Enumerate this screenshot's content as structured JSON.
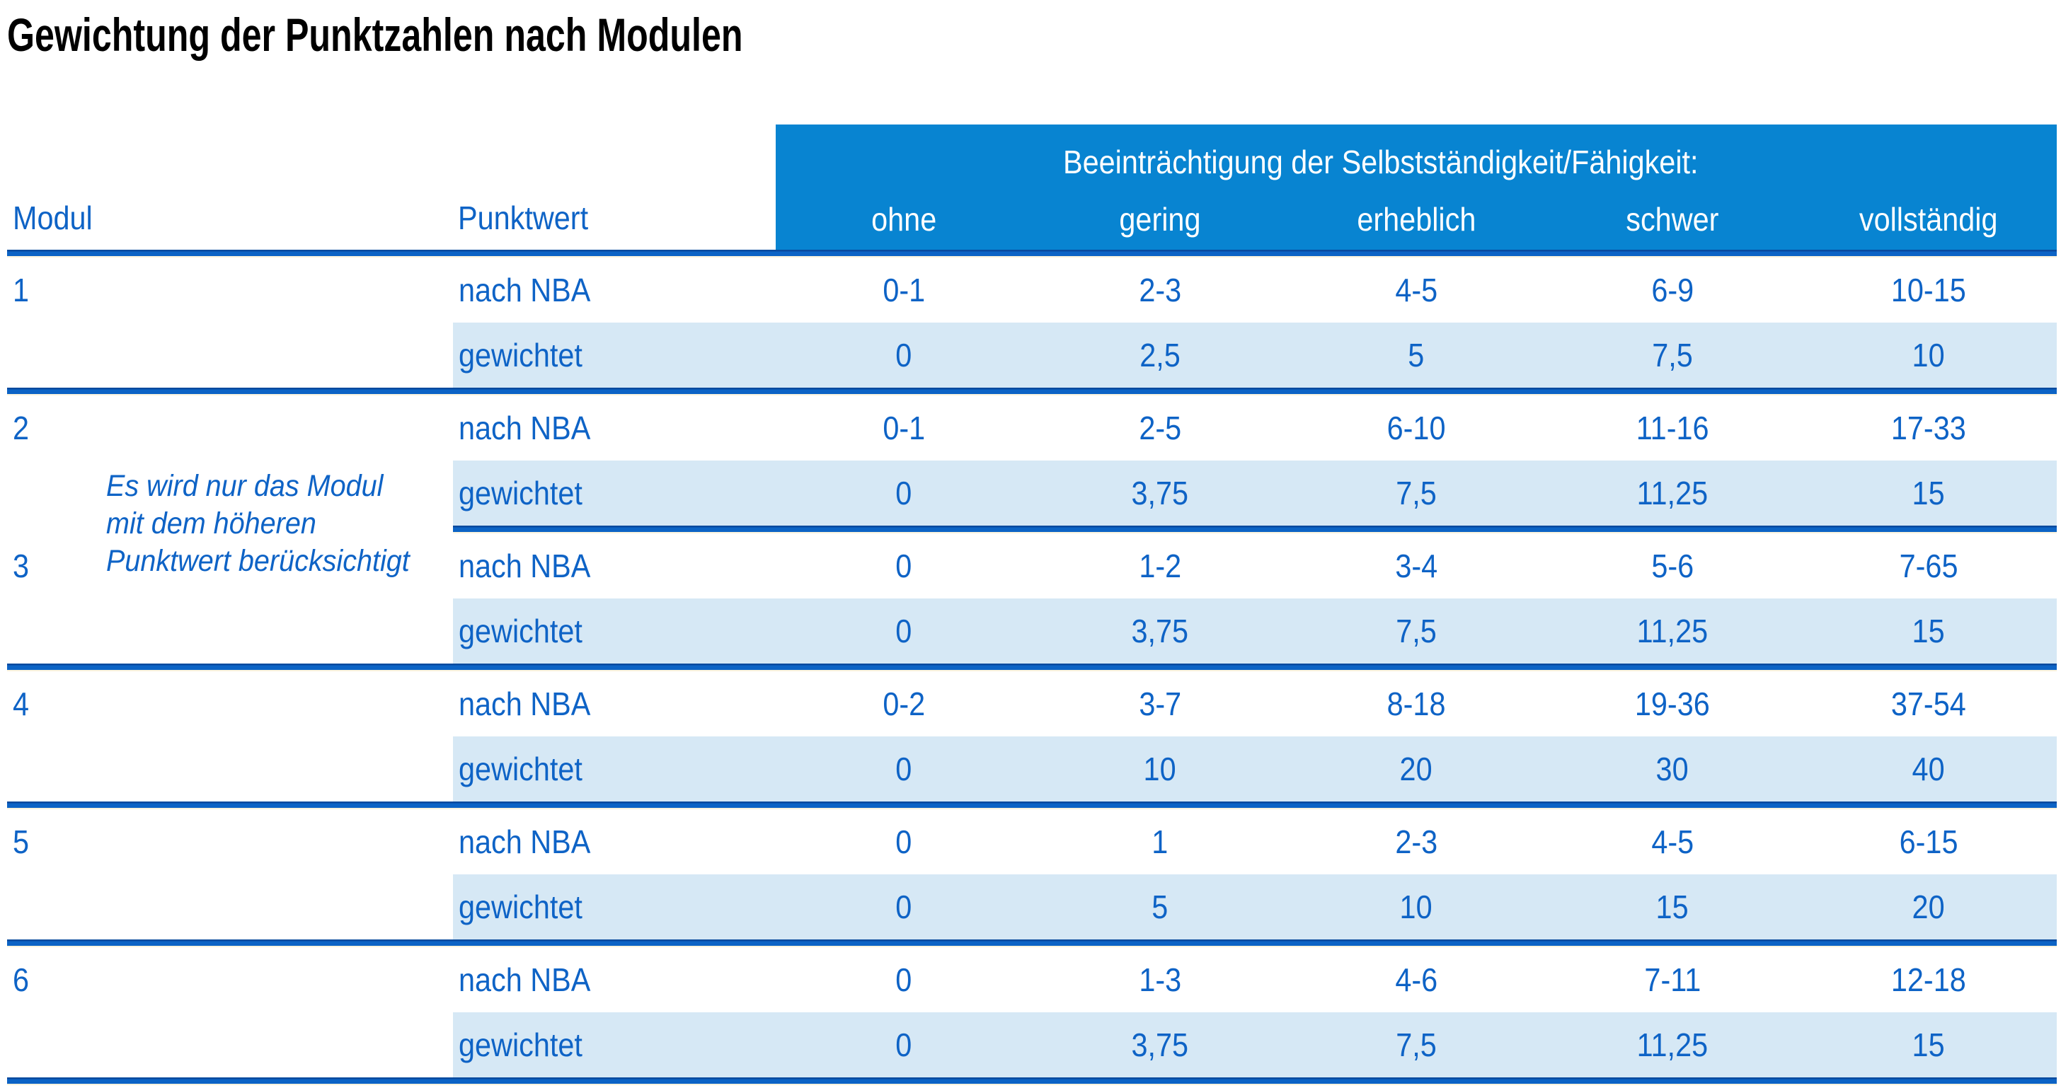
{
  "title": "Gewichtung der Punktzahlen nach Modulen",
  "table": {
    "corner_headers": {
      "modul": "Modul",
      "punktwert": "Punktwert"
    },
    "impairment_header": "Beeinträchtigung der Selbstständigkeit/Fähigkeit:",
    "severity_levels": [
      "ohne",
      "gering",
      "erheblich",
      "schwer",
      "vollständig"
    ],
    "row_labels": {
      "nba": "nach NBA",
      "weighted": "gewichtet"
    },
    "note_modules_2_3_lines": [
      "Es wird nur das Modul",
      "mit dem höheren",
      "Punktwert berücksichtigt"
    ],
    "modules": [
      {
        "id": "1",
        "nba": [
          "0-1",
          "2-3",
          "4-5",
          "6-9",
          "10-15"
        ],
        "weighted": [
          "0",
          "2,5",
          "5",
          "7,5",
          "10"
        ]
      },
      {
        "id": "2",
        "nba": [
          "0-1",
          "2-5",
          "6-10",
          "11-16",
          "17-33"
        ],
        "weighted": [
          "0",
          "3,75",
          "7,5",
          "11,25",
          "15"
        ]
      },
      {
        "id": "3",
        "nba": [
          "0",
          "1-2",
          "3-4",
          "5-6",
          "7-65"
        ],
        "weighted": [
          "0",
          "3,75",
          "7,5",
          "11,25",
          "15"
        ]
      },
      {
        "id": "4",
        "nba": [
          "0-2",
          "3-7",
          "8-18",
          "19-36",
          "37-54"
        ],
        "weighted": [
          "0",
          "10",
          "20",
          "30",
          "40"
        ]
      },
      {
        "id": "5",
        "nba": [
          "0",
          "1",
          "2-3",
          "4-5",
          "6-15"
        ],
        "weighted": [
          "0",
          "5",
          "10",
          "15",
          "20"
        ]
      },
      {
        "id": "6",
        "nba": [
          "0",
          "1-3",
          "4-6",
          "7-11",
          "12-18"
        ],
        "weighted": [
          "0",
          "3,75",
          "7,5",
          "11,25",
          "15"
        ]
      }
    ]
  },
  "colors": {
    "header_bg": "#0884d1",
    "header_text": "#ffffff",
    "body_text_blue": "#0e63c6",
    "weighted_row_bg": "#d6e8f5",
    "divider_blue": "#0c63c5",
    "divider_dark_edge": "#084a9e",
    "divider_cream_edge": "#faf3dd",
    "title_color": "#000000"
  }
}
